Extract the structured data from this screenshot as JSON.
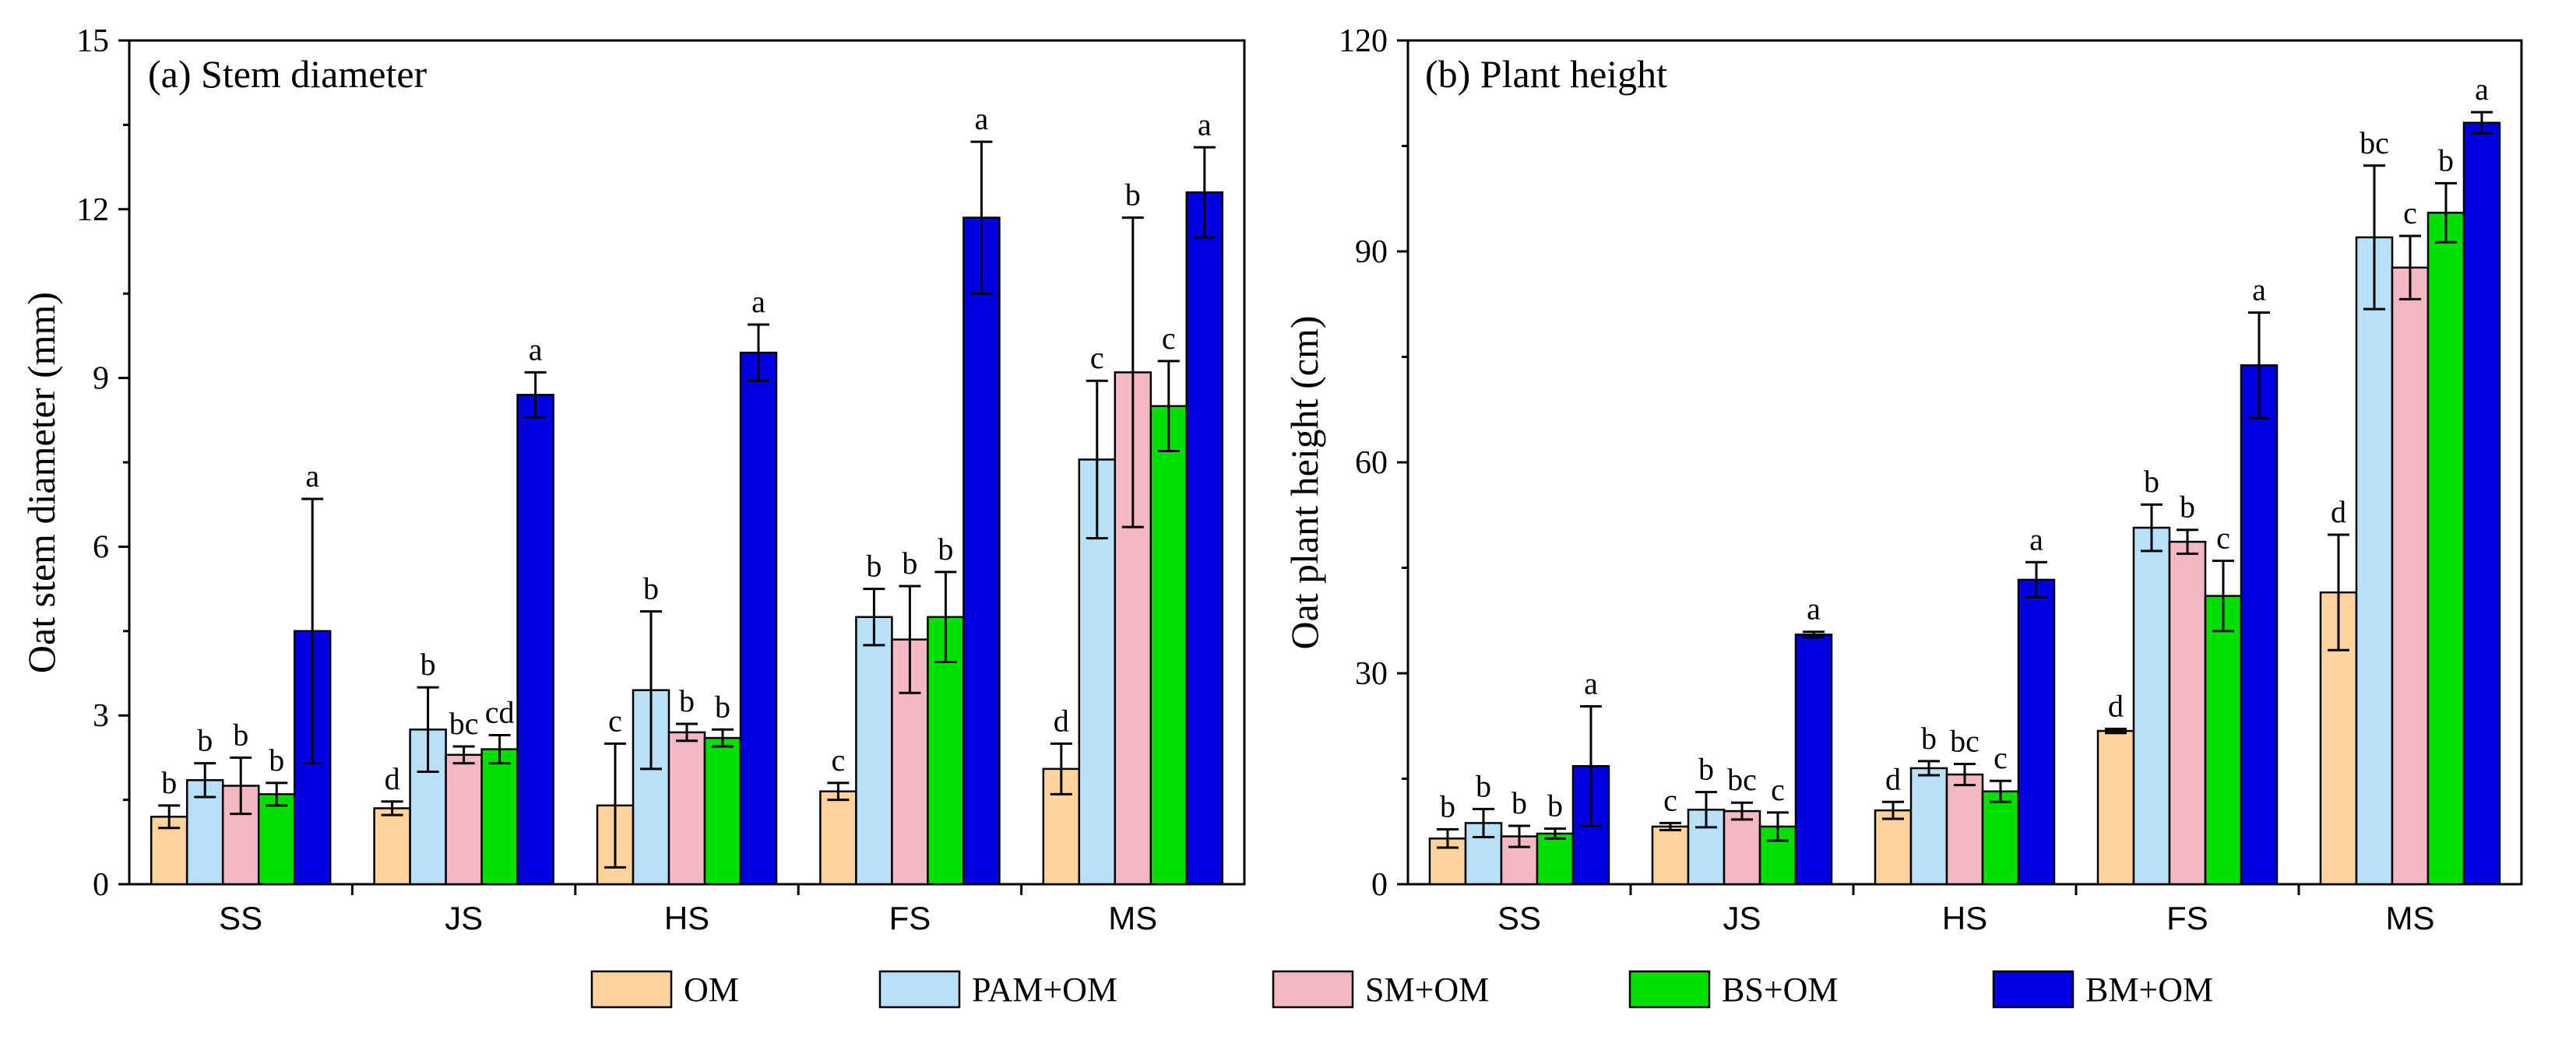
{
  "chart_data": [
    {
      "type": "bar",
      "title": "(a) Stem diameter",
      "xlabel": "",
      "ylabel": "Oat stem diameter (mm)",
      "ylim": [
        0,
        15
      ],
      "yticks": [
        0,
        3,
        6,
        9,
        12,
        15
      ],
      "categories": [
        "SS",
        "JS",
        "HS",
        "FS",
        "MS"
      ],
      "series": [
        {
          "name": "OM",
          "values": [
            1.2,
            1.35,
            1.4,
            1.65,
            2.05
          ],
          "errors": [
            0.2,
            0.12,
            1.1,
            0.15,
            0.45
          ],
          "letters": [
            "b",
            "d",
            "c",
            "c",
            "d"
          ]
        },
        {
          "name": "PAM+OM",
          "values": [
            1.85,
            2.75,
            3.45,
            4.75,
            7.55
          ],
          "errors": [
            0.3,
            0.75,
            1.4,
            0.5,
            1.4
          ],
          "letters": [
            "b",
            "b",
            "b",
            "b",
            "c"
          ]
        },
        {
          "name": "SM+OM",
          "values": [
            1.75,
            2.3,
            2.7,
            4.35,
            9.1
          ],
          "errors": [
            0.5,
            0.15,
            0.15,
            0.95,
            2.75
          ],
          "letters": [
            "b",
            "bc",
            "b",
            "b",
            "b"
          ]
        },
        {
          "name": "BS+OM",
          "values": [
            1.6,
            2.4,
            2.6,
            4.75,
            8.5
          ],
          "errors": [
            0.2,
            0.25,
            0.15,
            0.8,
            0.8
          ],
          "letters": [
            "b",
            "cd",
            "b",
            "b",
            "c"
          ]
        },
        {
          "name": "BM+OM",
          "values": [
            4.5,
            8.7,
            9.45,
            11.85,
            12.3
          ],
          "errors": [
            2.35,
            0.4,
            0.5,
            1.35,
            0.8
          ],
          "letters": [
            "a",
            "a",
            "a",
            "a",
            "a"
          ]
        }
      ]
    },
    {
      "type": "bar",
      "title": "(b) Plant height",
      "xlabel": "",
      "ylabel": "Oat plant height (cm)",
      "ylim": [
        0,
        120
      ],
      "yticks": [
        0,
        30,
        60,
        90,
        120
      ],
      "categories": [
        "SS",
        "JS",
        "HS",
        "FS",
        "MS"
      ],
      "series": [
        {
          "name": "OM",
          "values": [
            6.5,
            8.2,
            10.5,
            21.8,
            41.5
          ],
          "errors": [
            1.3,
            0.5,
            1.2,
            0.3,
            8.2
          ],
          "letters": [
            "b",
            "c",
            "d",
            "d",
            "d"
          ]
        },
        {
          "name": "PAM+OM",
          "values": [
            8.7,
            10.6,
            16.5,
            50.7,
            92.0
          ],
          "errors": [
            2.0,
            2.5,
            1.0,
            3.3,
            10.2
          ],
          "letters": [
            "b",
            "b",
            "b",
            "b",
            "bc"
          ]
        },
        {
          "name": "SM+OM",
          "values": [
            6.8,
            10.4,
            15.6,
            48.7,
            87.7
          ],
          "errors": [
            1.5,
            1.2,
            1.5,
            1.7,
            4.5
          ],
          "letters": [
            "b",
            "bc",
            "bc",
            "b",
            "c"
          ]
        },
        {
          "name": "BS+OM",
          "values": [
            7.2,
            8.2,
            13.2,
            41.0,
            95.5
          ],
          "errors": [
            0.7,
            2.0,
            1.5,
            5.0,
            4.2
          ],
          "letters": [
            "b",
            "c",
            "c",
            "c",
            "b"
          ]
        },
        {
          "name": "BM+OM",
          "values": [
            16.8,
            35.5,
            43.3,
            73.8,
            108.3
          ],
          "errors": [
            8.5,
            0.4,
            2.5,
            7.5,
            1.5
          ],
          "letters": [
            "a",
            "a",
            "a",
            "a",
            "a"
          ]
        }
      ]
    }
  ],
  "legend": {
    "placement": "bottom-center",
    "items": [
      {
        "label": "OM",
        "color": "#FFD39B"
      },
      {
        "label": "PAM+OM",
        "color": "#B8E0F8"
      },
      {
        "label": "SM+OM",
        "color": "#F4B8C4"
      },
      {
        "label": "BS+OM",
        "color": "#00E000"
      },
      {
        "label": "BM+OM",
        "color": "#0000E0"
      }
    ]
  }
}
